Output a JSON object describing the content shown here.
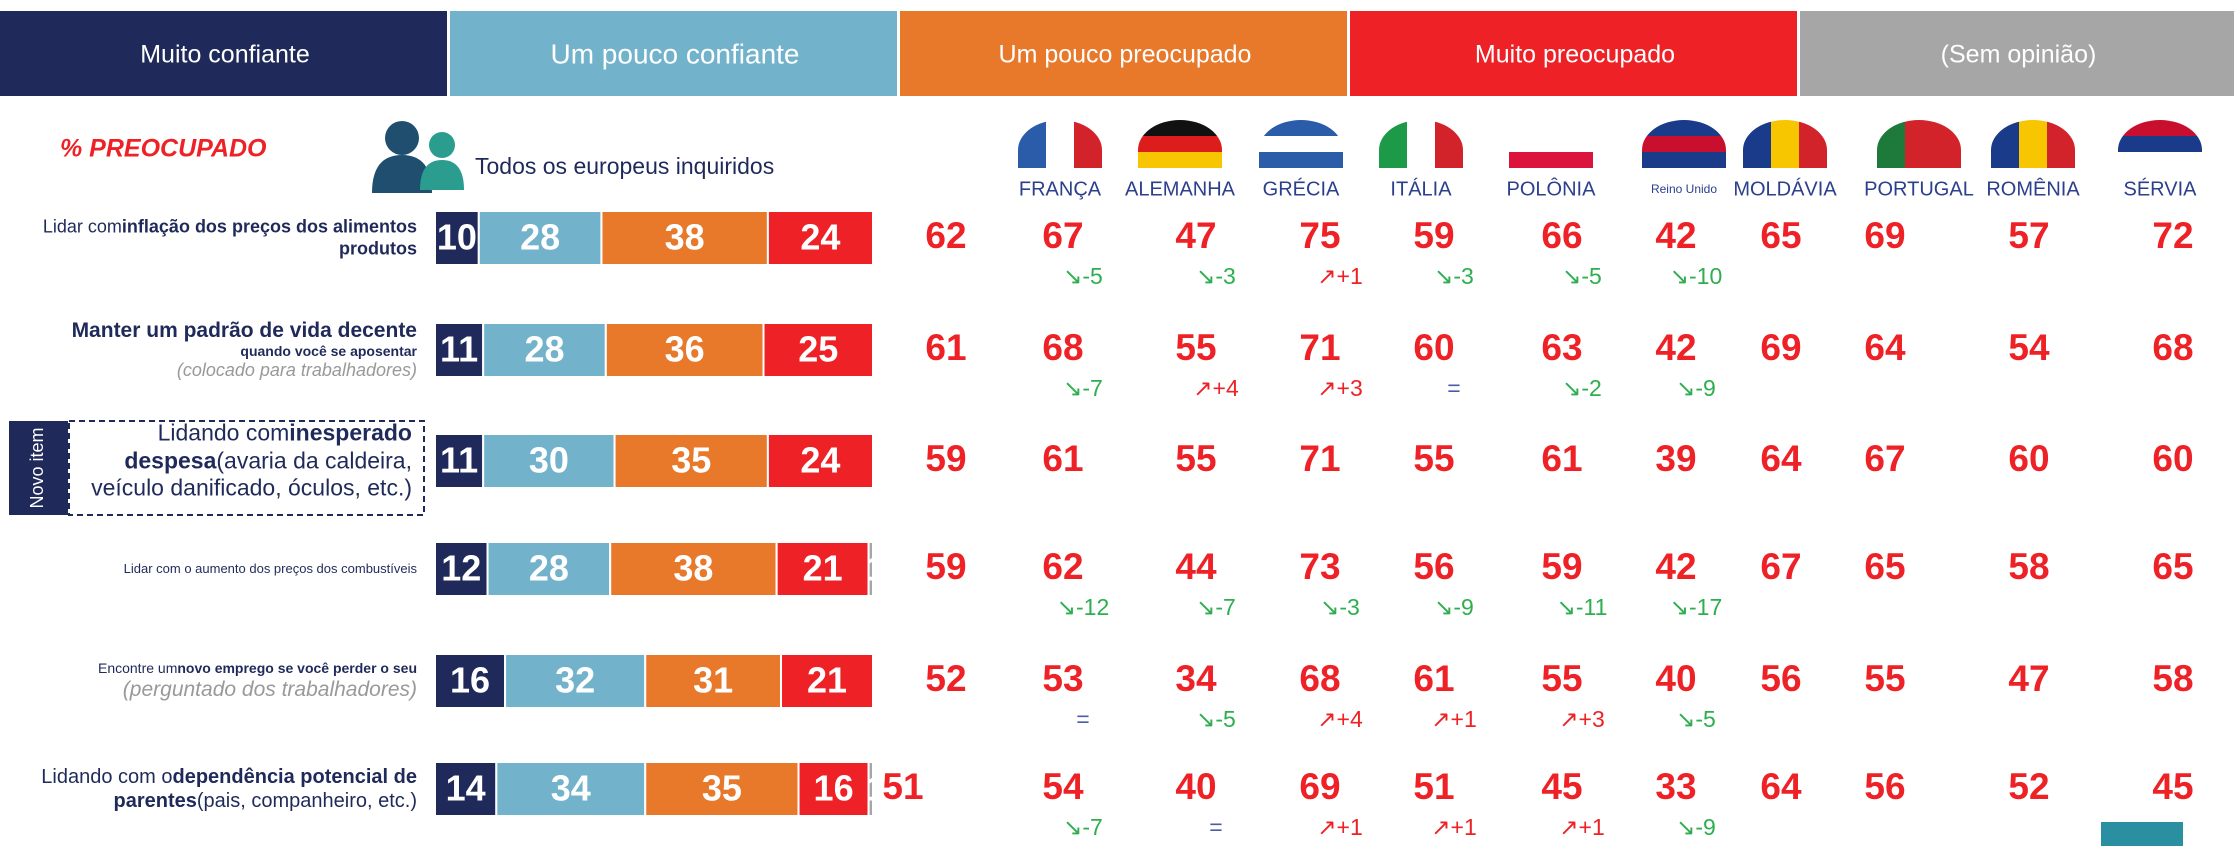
{
  "legend": [
    {
      "name": "Muito confiante",
      "color": "#1f2a5a"
    },
    {
      "name": "Um pouco confiante",
      "color": "#72b3cb"
    },
    {
      "name": "Um pouco preocupado",
      "color": "#e8792a"
    },
    {
      "name": "Muito preocupado",
      "color": "#ee2226"
    },
    {
      "name": "(Sem opinião)",
      "color": "#a6a6a6"
    }
  ],
  "heading": "% PREOCUPADO",
  "all_label": "Todos os europeus inquiridos",
  "countries": [
    "FRANÇA",
    "ALEMANHA",
    "GRÉCIA",
    "ITÁLIA",
    "POLÔNIA",
    "Reino Unido",
    "MOLDÁVIA",
    "PORTUGAL",
    "ROMÊNIA",
    "SÉRVIA"
  ],
  "new_item": "Novo item",
  "rows": [
    {
      "label_parts": [
        {
          "text": "Lidar com",
          "style": "plain"
        },
        {
          "text": "inflação dos preços dos alimentos produtos",
          "style": "bold"
        }
      ],
      "segments": [
        10,
        28,
        38,
        24
      ],
      "total": 62,
      "country_values": [
        67,
        47,
        75,
        59,
        66,
        42,
        65,
        69,
        57,
        72
      ],
      "changes": [
        "↘-5",
        "↘-3",
        "↗+1",
        "↘-3",
        "↘-5",
        "↘-10"
      ]
    },
    {
      "label_parts": [
        {
          "text": "Manter um padrão de vida decente",
          "style": "bold"
        },
        {
          "text": "quando você se aposentar",
          "style": "sub"
        },
        {
          "text": "(colocado para trabalhadores)",
          "style": "note"
        }
      ],
      "segments": [
        11,
        28,
        36,
        25
      ],
      "total": 61,
      "country_values": [
        68,
        55,
        71,
        60,
        63,
        42,
        69,
        64,
        54,
        68
      ],
      "changes": [
        "↘-7",
        "↗+4",
        "↗+3",
        "=",
        "↘-2",
        "↘-9"
      ]
    },
    {
      "label_parts": [
        {
          "text": "Lidando com",
          "style": "plain"
        },
        {
          "text": "inesperado despesa",
          "style": "bold"
        },
        {
          "text": "(avaria da caldeira, veículo danificado, óculos, etc.)",
          "style": "plain"
        }
      ],
      "segments": [
        11,
        30,
        35,
        24
      ],
      "total": 59,
      "new": true,
      "country_values": [
        61,
        55,
        71,
        55,
        61,
        39,
        64,
        67,
        60,
        60
      ],
      "changes": []
    },
    {
      "label_parts": [
        {
          "text": "Lidar com o aumento dos preços dos combustíveis",
          "style": "plain"
        }
      ],
      "segments": [
        12,
        28,
        38,
        21,
        1
      ],
      "total": 59,
      "country_values": [
        62,
        44,
        73,
        56,
        59,
        42,
        67,
        65,
        58,
        65
      ],
      "changes": [
        "↘-12",
        "↘-7",
        "↘-3",
        "↘-9",
        "↘-11",
        "↘-17"
      ]
    },
    {
      "label_parts": [
        {
          "text": "Encontre um",
          "style": "plain"
        },
        {
          "text": "novo emprego se você perder o seu",
          "style": "bold"
        },
        {
          "text": "(perguntado dos trabalhadores)",
          "style": "note"
        }
      ],
      "segments": [
        16,
        32,
        31,
        21
      ],
      "total": 52,
      "country_values": [
        53,
        34,
        68,
        61,
        55,
        40,
        56,
        55,
        47,
        58
      ],
      "changes": [
        "=",
        "↘-5",
        "↗+4",
        "↗+1",
        "↗+3",
        "↘-5"
      ]
    },
    {
      "label_parts": [
        {
          "text": "Lidando com o",
          "style": "plain"
        },
        {
          "text": "dependência potencial de parentes",
          "style": "bold"
        },
        {
          "text": "(pais, companheiro, etc.)",
          "style": "plain"
        }
      ],
      "segments": [
        14,
        34,
        35,
        16,
        1
      ],
      "total": 51,
      "country_values": [
        54,
        40,
        69,
        51,
        45,
        33,
        64,
        56,
        52,
        45
      ],
      "changes": [
        "↘-7",
        "=",
        "↗+1",
        "↗+1",
        "↗+1",
        "↘-9"
      ]
    }
  ]
}
